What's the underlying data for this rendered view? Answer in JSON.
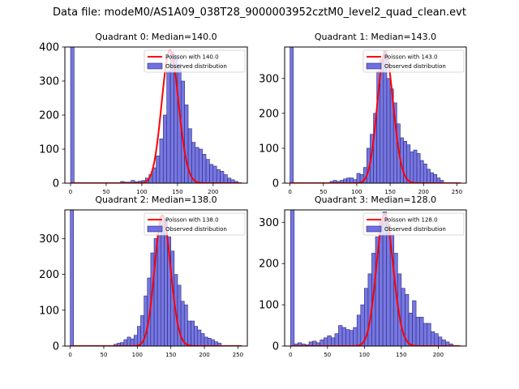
{
  "figure": {
    "title": "Data file: modeM0/AS1A09_038T28_9000003952cztM0_level2_quad_clean.evt"
  },
  "colors": {
    "histogram_fill": "#7070e0",
    "histogram_edge": "#2a2a7a",
    "poisson_line": "#ff0000"
  },
  "chart_data": [
    {
      "type": "bar",
      "title": "Quadrant 0: Median=140.0",
      "xlim": [
        -8,
        248
      ],
      "ylim": [
        0,
        400
      ],
      "xticks": [
        0,
        50,
        100,
        150,
        200
      ],
      "yticks": [
        0,
        100,
        200,
        300,
        400
      ],
      "bin_width": 5,
      "grid": false,
      "legend_position": "top-right",
      "series": [
        {
          "name": "Poisson with 140.0",
          "type": "line",
          "lambda": 140.0,
          "peak": 390
        },
        {
          "name": "Observed distribution",
          "type": "histogram",
          "bins": [
            [
              0,
              5,
              430
            ],
            [
              70,
              75,
              5
            ],
            [
              75,
              80,
              3
            ],
            [
              80,
              85,
              3
            ],
            [
              85,
              90,
              8
            ],
            [
              90,
              95,
              4
            ],
            [
              95,
              100,
              6
            ],
            [
              100,
              105,
              8
            ],
            [
              105,
              110,
              15
            ],
            [
              110,
              115,
              25
            ],
            [
              115,
              120,
              45
            ],
            [
              120,
              125,
              80
            ],
            [
              125,
              130,
              130
            ],
            [
              130,
              135,
              200
            ],
            [
              135,
              140,
              330
            ],
            [
              140,
              145,
              385
            ],
            [
              145,
              150,
              375
            ],
            [
              150,
              155,
              350
            ],
            [
              155,
              160,
              300
            ],
            [
              160,
              165,
              230
            ],
            [
              165,
              170,
              160
            ],
            [
              170,
              175,
              120
            ],
            [
              175,
              180,
              105
            ],
            [
              180,
              185,
              100
            ],
            [
              185,
              190,
              85
            ],
            [
              190,
              195,
              70
            ],
            [
              195,
              200,
              55
            ],
            [
              200,
              205,
              50
            ],
            [
              205,
              210,
              40
            ],
            [
              210,
              215,
              35
            ],
            [
              215,
              220,
              25
            ],
            [
              220,
              225,
              15
            ],
            [
              225,
              230,
              10
            ],
            [
              230,
              235,
              5
            ]
          ]
        }
      ]
    },
    {
      "type": "bar",
      "title": "Quadrant 1: Median=143.0",
      "xlim": [
        -8,
        264
      ],
      "ylim": [
        0,
        390
      ],
      "xticks": [
        0,
        50,
        100,
        150,
        200,
        250
      ],
      "yticks": [
        0,
        100,
        200,
        300
      ],
      "bin_width": 5,
      "grid": false,
      "legend_position": "top-right",
      "series": [
        {
          "name": "Poisson with 143.0",
          "type": "line",
          "lambda": 143.0,
          "peak": 375
        },
        {
          "name": "Observed distribution",
          "type": "histogram",
          "bins": [
            [
              0,
              5,
              420
            ],
            [
              60,
              65,
              5
            ],
            [
              65,
              70,
              8
            ],
            [
              70,
              75,
              5
            ],
            [
              75,
              80,
              8
            ],
            [
              80,
              85,
              12
            ],
            [
              85,
              90,
              15
            ],
            [
              90,
              95,
              15
            ],
            [
              95,
              100,
              10
            ],
            [
              100,
              105,
              28
            ],
            [
              105,
              110,
              25
            ],
            [
              110,
              115,
              45
            ],
            [
              115,
              120,
              100
            ],
            [
              120,
              125,
              140
            ],
            [
              125,
              130,
              200
            ],
            [
              130,
              135,
              320
            ],
            [
              135,
              140,
              355
            ],
            [
              140,
              145,
              380
            ],
            [
              145,
              150,
              300
            ],
            [
              150,
              155,
              270
            ],
            [
              155,
              160,
              230
            ],
            [
              160,
              165,
              170
            ],
            [
              165,
              170,
              130
            ],
            [
              170,
              175,
              120
            ],
            [
              175,
              180,
              110
            ],
            [
              180,
              185,
              90
            ],
            [
              185,
              190,
              95
            ],
            [
              190,
              195,
              85
            ],
            [
              195,
              200,
              65
            ],
            [
              200,
              205,
              55
            ],
            [
              205,
              210,
              40
            ],
            [
              210,
              215,
              30
            ],
            [
              215,
              220,
              25
            ],
            [
              220,
              225,
              15
            ],
            [
              225,
              230,
              8
            ]
          ]
        }
      ]
    },
    {
      "type": "bar",
      "title": "Quadrant 2: Median=138.0",
      "xlim": [
        -8,
        264
      ],
      "ylim": [
        0,
        380
      ],
      "xticks": [
        0,
        50,
        100,
        150,
        200,
        250
      ],
      "yticks": [
        0,
        100,
        200,
        300
      ],
      "bin_width": 5,
      "grid": false,
      "legend_position": "top-right",
      "series": [
        {
          "name": "Poisson with 138.0",
          "type": "line",
          "lambda": 138.0,
          "peak": 365
        },
        {
          "name": "Observed distribution",
          "type": "histogram",
          "bins": [
            [
              0,
              5,
              400
            ],
            [
              65,
              70,
              5
            ],
            [
              70,
              75,
              8
            ],
            [
              75,
              80,
              10
            ],
            [
              80,
              85,
              18
            ],
            [
              85,
              90,
              25
            ],
            [
              90,
              95,
              20
            ],
            [
              95,
              100,
              30
            ],
            [
              100,
              105,
              55
            ],
            [
              105,
              110,
              85
            ],
            [
              110,
              115,
              140
            ],
            [
              115,
              120,
              190
            ],
            [
              120,
              125,
              260
            ],
            [
              125,
              130,
              300
            ],
            [
              130,
              135,
              310
            ],
            [
              135,
              140,
              350
            ],
            [
              140,
              145,
              355
            ],
            [
              145,
              150,
              305
            ],
            [
              150,
              155,
              265
            ],
            [
              155,
              160,
              200
            ],
            [
              160,
              165,
              170
            ],
            [
              165,
              170,
              125
            ],
            [
              170,
              175,
              115
            ],
            [
              175,
              180,
              70
            ],
            [
              180,
              185,
              70
            ],
            [
              185,
              190,
              55
            ],
            [
              190,
              195,
              45
            ],
            [
              195,
              200,
              35
            ],
            [
              200,
              205,
              25
            ],
            [
              205,
              210,
              22
            ],
            [
              210,
              215,
              18
            ],
            [
              215,
              220,
              12
            ],
            [
              220,
              225,
              8
            ]
          ]
        }
      ]
    },
    {
      "type": "bar",
      "title": "Quadrant 3: Median=128.0",
      "xlim": [
        -8,
        238
      ],
      "ylim": [
        0,
        330
      ],
      "xticks": [
        0,
        50,
        100,
        150,
        200
      ],
      "yticks": [
        0,
        100,
        200,
        300
      ],
      "bin_width": 5,
      "grid": false,
      "legend_position": "top-right",
      "series": [
        {
          "name": "Poisson with 128.0",
          "type": "line",
          "lambda": 128.0,
          "peak": 320
        },
        {
          "name": "Observed distribution",
          "type": "histogram",
          "bins": [
            [
              0,
              5,
              360
            ],
            [
              5,
              10,
              5
            ],
            [
              10,
              15,
              8
            ],
            [
              15,
              20,
              5
            ],
            [
              20,
              25,
              3
            ],
            [
              25,
              30,
              10
            ],
            [
              30,
              35,
              12
            ],
            [
              35,
              40,
              8
            ],
            [
              40,
              45,
              15
            ],
            [
              45,
              50,
              20
            ],
            [
              50,
              55,
              25
            ],
            [
              55,
              60,
              20
            ],
            [
              60,
              65,
              30
            ],
            [
              65,
              70,
              50
            ],
            [
              70,
              75,
              45
            ],
            [
              75,
              80,
              40
            ],
            [
              80,
              85,
              38
            ],
            [
              85,
              90,
              45
            ],
            [
              90,
              95,
              75
            ],
            [
              95,
              100,
              100
            ],
            [
              100,
              105,
              140
            ],
            [
              105,
              110,
              175
            ],
            [
              110,
              115,
              225
            ],
            [
              115,
              120,
              265
            ],
            [
              120,
              125,
              305
            ],
            [
              125,
              130,
              325
            ],
            [
              130,
              135,
              295
            ],
            [
              135,
              140,
              270
            ],
            [
              140,
              145,
              225
            ],
            [
              145,
              150,
              175
            ],
            [
              150,
              155,
              140
            ],
            [
              155,
              160,
              125
            ],
            [
              160,
              165,
              80
            ],
            [
              165,
              170,
              110
            ],
            [
              170,
              175,
              70
            ],
            [
              175,
              180,
              70
            ],
            [
              180,
              185,
              55
            ],
            [
              185,
              190,
              55
            ],
            [
              190,
              195,
              35
            ],
            [
              195,
              200,
              30
            ],
            [
              200,
              205,
              22
            ],
            [
              205,
              210,
              15
            ],
            [
              210,
              215,
              10
            ],
            [
              215,
              220,
              5
            ]
          ]
        }
      ]
    }
  ]
}
